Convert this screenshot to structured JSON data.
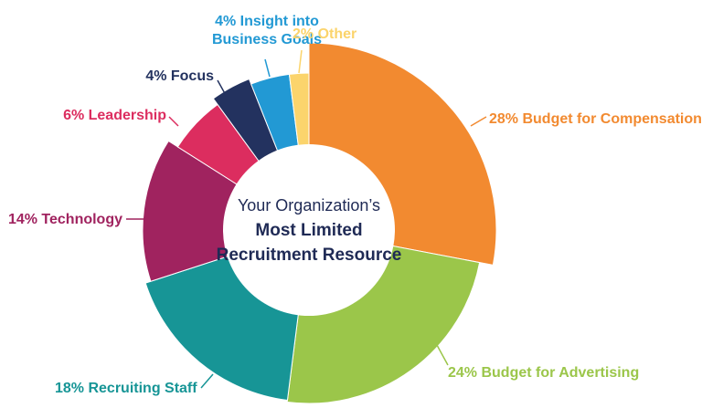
{
  "chart_data": {
    "type": "pie",
    "title_lines": [
      "Your Organization’s",
      "Most Limited",
      "Recruitment Resource"
    ],
    "legend": "none",
    "slices": [
      {
        "label": "28% Budget for Compensation",
        "value": 28,
        "color": "#f28a30"
      },
      {
        "label": "24% Budget for Advertising",
        "value": 24,
        "color": "#9bc64a"
      },
      {
        "label": "18% Recruiting Staff",
        "value": 18,
        "color": "#179596"
      },
      {
        "label": "14% Technology",
        "value": 14,
        "color": "#a0235f"
      },
      {
        "label": "6% Leadership",
        "value": 6,
        "color": "#dc2d5f"
      },
      {
        "label": "4% Focus",
        "value": 4,
        "color": "#23325f"
      },
      {
        "label": "4% Insight into Business Goals",
        "value": 4,
        "color": "#2299d4"
      },
      {
        "label": "2% Other",
        "value": 2,
        "color": "#fbd46c"
      }
    ]
  }
}
